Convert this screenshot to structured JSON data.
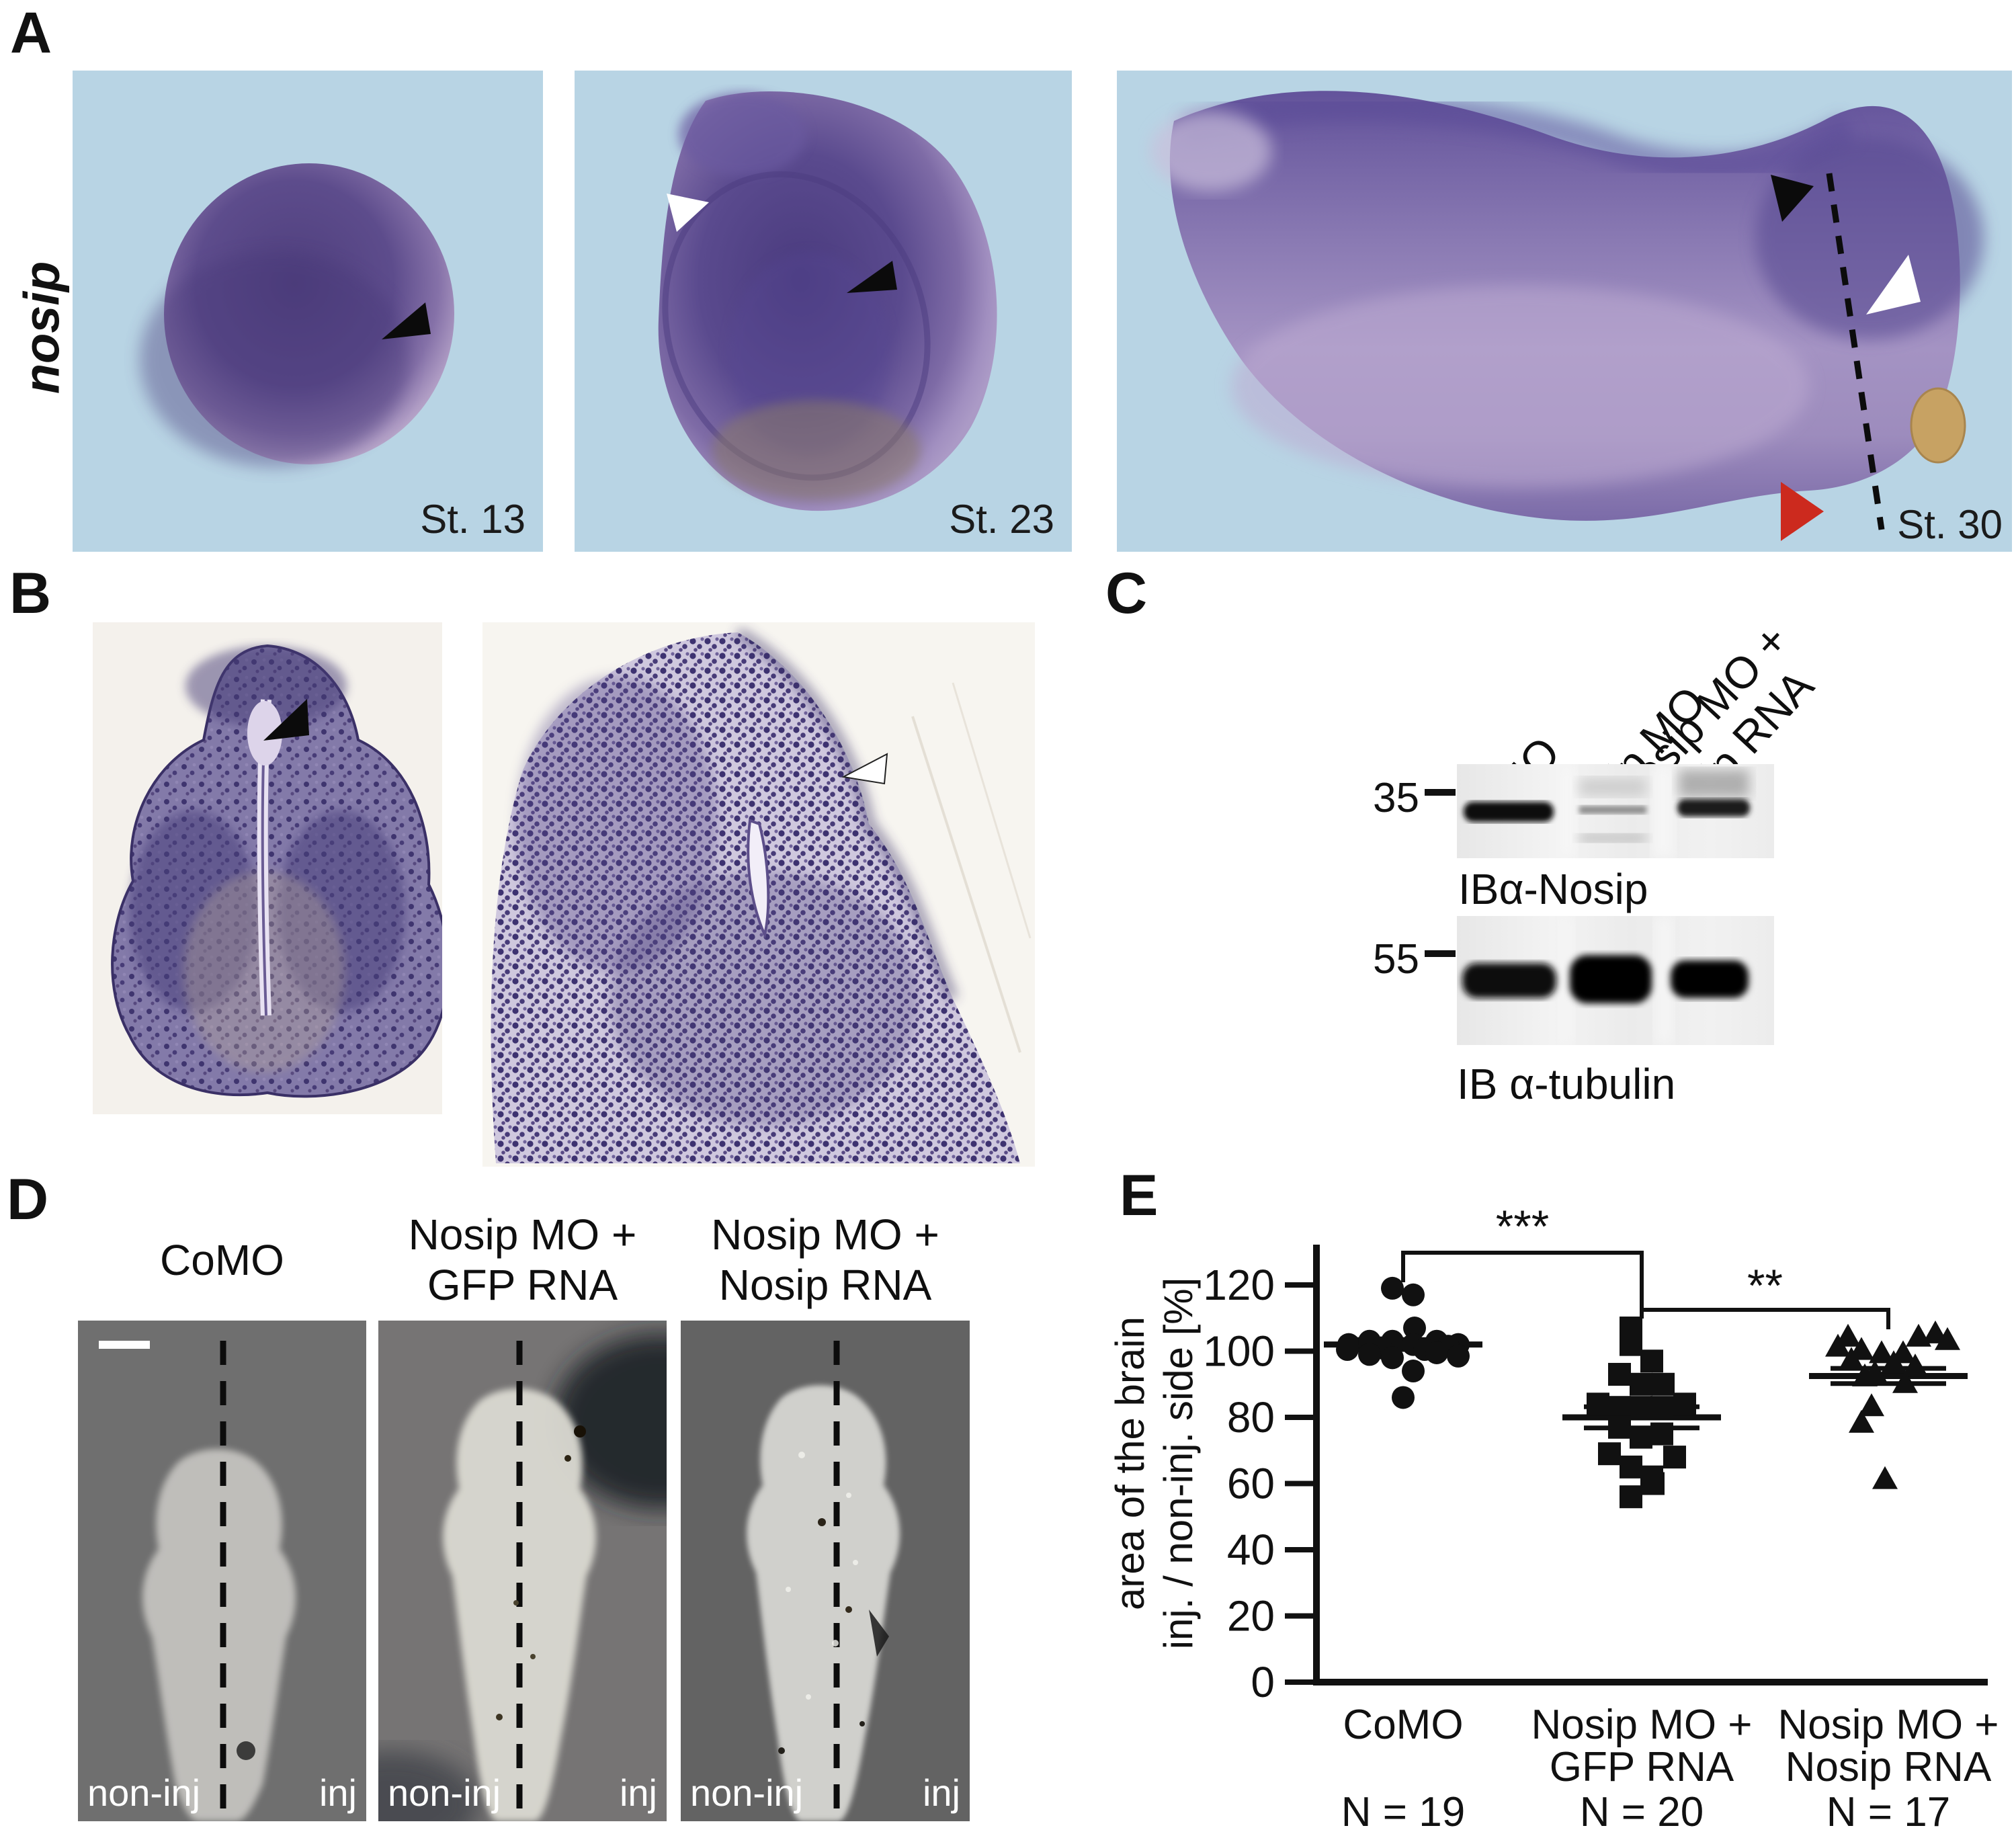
{
  "colors": {
    "panel_a_background": "#b8d4e4",
    "embryo_purple": "#5d4c8c",
    "red_arrowhead": "#cc2a1e",
    "d_image_background": "#6f6f6f",
    "side_label_white": "#ffffff"
  },
  "panels": {
    "a": {
      "letter": "A",
      "gene": "nosip",
      "stages": [
        "St. 13",
        "St. 23",
        "St. 30"
      ]
    },
    "b": {
      "letter": "B"
    },
    "c": {
      "letter": "C",
      "lanes": [
        {
          "label": "CoMO"
        },
        {
          "label": "Nosip MO"
        },
        {
          "label": "Nosip MO +",
          "label2": "Nosip RNA"
        }
      ],
      "markers": [
        "35",
        "55"
      ],
      "blots": [
        {
          "label": "IBα-Nosip"
        },
        {
          "label": "IB α-tubulin"
        }
      ]
    },
    "d": {
      "letter": "D",
      "conditions": [
        {
          "line1": "CoMO",
          "line2": ""
        },
        {
          "line1": "Nosip MO +",
          "line2": "GFP RNA"
        },
        {
          "line1": "Nosip MO +",
          "line2": "Nosip RNA"
        }
      ],
      "side_left": "non-inj",
      "side_right": "inj"
    },
    "e": {
      "letter": "E"
    }
  },
  "chart_data": {
    "type": "scatter",
    "title": "",
    "ylabel_line1": "area of the brain",
    "ylabel_line2": "inj. / non-inj. side [%]",
    "ylim": [
      0,
      130
    ],
    "yticks": [
      0,
      20,
      40,
      60,
      80,
      100,
      120
    ],
    "grid": false,
    "legend": "none",
    "groups": [
      {
        "label_line1": "CoMO",
        "label_line2": "",
        "n_label": "N = 19",
        "marker": "circle",
        "mean": 102,
        "sem": 1.5,
        "points": [
          [
            -16,
            119
          ],
          [
            15,
            117
          ],
          [
            17,
            107
          ],
          [
            -81,
            102
          ],
          [
            -50,
            103
          ],
          [
            -16,
            103
          ],
          [
            15,
            102
          ],
          [
            50,
            103
          ],
          [
            82,
            102
          ],
          [
            -83,
            100.5
          ],
          [
            -33,
            101
          ],
          [
            32,
            100.5
          ],
          [
            67,
            101.5
          ],
          [
            -50,
            99
          ],
          [
            -16,
            98
          ],
          [
            50,
            99.5
          ],
          [
            82,
            98.5
          ],
          [
            15,
            94
          ],
          [
            0,
            86
          ]
        ]
      },
      {
        "label_line1": "Nosip MO +",
        "label_line2": "GFP RNA",
        "n_label": "N = 20",
        "marker": "square",
        "mean": 80,
        "sem": 3.2,
        "points": [
          [
            -16,
            107
          ],
          [
            -16,
            102
          ],
          [
            15,
            97
          ],
          [
            -33,
            93
          ],
          [
            -1,
            90
          ],
          [
            32,
            90
          ],
          [
            -65,
            84
          ],
          [
            -33,
            83
          ],
          [
            -1,
            83
          ],
          [
            30,
            83
          ],
          [
            64,
            84
          ],
          [
            -33,
            77
          ],
          [
            30,
            75
          ],
          [
            -1,
            74
          ],
          [
            -48,
            69
          ],
          [
            49,
            68
          ],
          [
            -16,
            65
          ],
          [
            15,
            62
          ],
          [
            17,
            60
          ],
          [
            -16,
            56
          ]
        ]
      },
      {
        "label_line1": "Nosip MO +",
        "label_line2": "Nosip RNA",
        "n_label": "N = 17",
        "marker": "triangle",
        "mean": 92.5,
        "sem": 2.3,
        "points": [
          [
            70,
            105
          ],
          [
            -60,
            104
          ],
          [
            45,
            104
          ],
          [
            88,
            103
          ],
          [
            -75,
            101
          ],
          [
            -40,
            100
          ],
          [
            -10,
            99
          ],
          [
            22,
            99
          ],
          [
            -55,
            97
          ],
          [
            8,
            96
          ],
          [
            40,
            95
          ],
          [
            -20,
            93
          ],
          [
            -35,
            92
          ],
          [
            25,
            90
          ],
          [
            -25,
            83
          ],
          [
            -40,
            78
          ],
          [
            -5,
            61
          ]
        ]
      }
    ],
    "significance": [
      {
        "from": 0,
        "to": 1,
        "label": "***"
      },
      {
        "from": 1,
        "to": 2,
        "label": "**"
      }
    ]
  }
}
